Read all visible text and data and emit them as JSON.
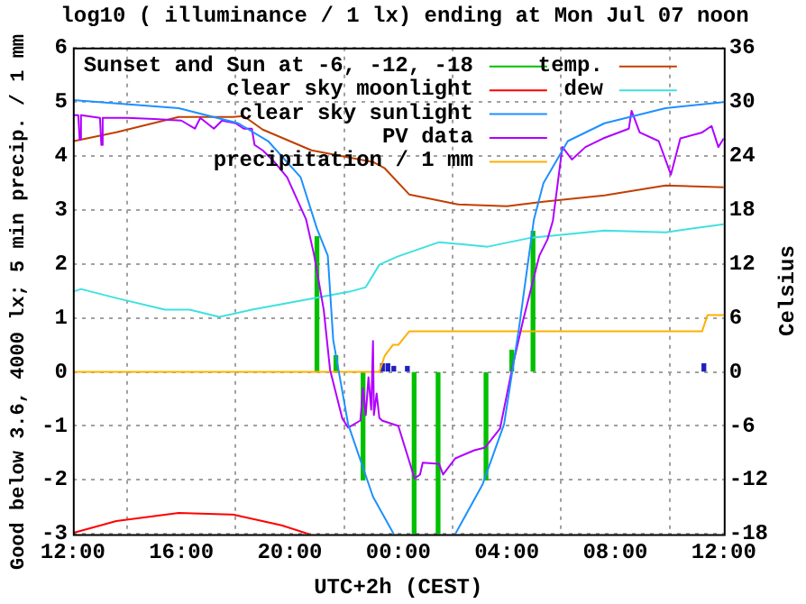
{
  "chart_data": {
    "type": "line",
    "title": "log10 ( illuminance / 1 lx) ending at Mon Jul 07 noon",
    "xlabel": "UTC+2h (CEST)",
    "ylabel": "Good below 3.6, 4000 lx; 5 min precip. / 1 mm",
    "y2label": "Celsius",
    "xlim": [
      "--07-06T12:00",
      "--07-07T12:00"
    ],
    "xticks": [
      {
        "value": "--07-06T12:00",
        "label": "12:00"
      },
      {
        "value": "--07-06T16:00",
        "label": "16:00"
      },
      {
        "value": "--07-06T20:00",
        "label": "20:00"
      },
      {
        "value": "--07-07T00:00",
        "label": "00:00"
      },
      {
        "value": "--07-07T04:00",
        "label": "04:00"
      },
      {
        "value": "--07-07T08:00",
        "label": "08:00"
      },
      {
        "value": "--07-07T12:00",
        "label": "12:00"
      }
    ],
    "ylim": [
      -3,
      6
    ],
    "yticks": [
      -3,
      -2,
      -1,
      0,
      1,
      2,
      3,
      4,
      5,
      6
    ],
    "y2lim": [
      -18,
      36
    ],
    "y2ticks": [
      -18,
      -12,
      -6,
      0,
      6,
      12,
      18,
      24,
      30,
      36
    ],
    "grid": true,
    "legend": "top",
    "series": [
      {
        "name": "Sunset and Sun at -6, -12, -18",
        "type": "bar",
        "color": "#00c000",
        "x": [
          "--07-06T21:00",
          "--07-06T21:42",
          "--07-06T22:42",
          "--07-07T00:35",
          "--07-07T01:28",
          "--07-07T03:14",
          "--07-07T04:11",
          "--07-07T04:58"
        ],
        "values": [
          2.5,
          0.3,
          -2,
          -3,
          -3,
          -2,
          0.4,
          2.6
        ]
      },
      {
        "name": "clear sky moonlight",
        "color": "#ff0000",
        "x": [
          "--07-06T12:00",
          "--07-06T13:36",
          "--07-06T15:54",
          "--07-06T17:54",
          "--07-06T19:42",
          "--07-06T20:42"
        ],
        "values": [
          -2.98,
          -2.76,
          -2.61,
          -2.64,
          -2.84,
          -3
        ]
      },
      {
        "name": "clear sky sunlight",
        "color": "#1e90ff",
        "x": [
          "--07-06T12:00",
          "--07-06T15:54",
          "--07-06T18:06",
          "--07-06T19:12",
          "--07-06T20:24",
          "--07-06T21:00",
          "--07-06T21:24",
          "--07-06T21:36",
          "--07-06T22:09",
          "--07-06T23:04",
          "--07-06T23:50",
          "--07-07T01:00",
          "--07-07T02:06",
          "--07-07T03:06",
          "--07-07T03:54",
          "--07-07T04:27",
          "--07-07T05:00",
          "--07-07T05:21",
          "--07-07T06:15",
          "--07-07T07:36",
          "--07-07T09:51",
          "--07-07T12:00"
        ],
        "values": [
          5.03,
          4.88,
          4.6,
          4.27,
          3.6,
          2.65,
          2.15,
          0.59,
          -0.97,
          -2.31,
          -3,
          null,
          -3,
          -2.09,
          -0.97,
          0.81,
          2.82,
          3.49,
          4.27,
          4.6,
          4.88,
          4.99
        ]
      },
      {
        "name": "PV data",
        "color": "#b000ff",
        "x": [
          "--07-06T12:00",
          "--07-06T12:12",
          "--07-06T12:15",
          "--07-06T12:18",
          "--07-06T13:00",
          "--07-06T13:03",
          "--07-06T13:06",
          "--07-06T14:00",
          "--07-06T15:00",
          "--07-06T16:00",
          "--07-06T16:30",
          "--07-06T16:42",
          "--07-06T17:12",
          "--07-06T17:30",
          "--07-06T18:00",
          "--07-06T18:18",
          "--07-06T18:36",
          "--07-06T18:42",
          "--07-06T19:00",
          "--07-06T19:24",
          "--07-06T19:54",
          "--07-06T20:36",
          "--07-06T20:54",
          "--07-06T21:15",
          "--07-06T21:29",
          "--07-06T21:56",
          "--07-06T22:09",
          "--07-06T22:36",
          "--07-06T22:42",
          "--07-06T22:48",
          "--07-06T22:54",
          "--07-06T23:00",
          "--07-06T23:04",
          "--07-06T23:06",
          "--07-06T23:12",
          "--07-06T23:18",
          "--07-06T23:24",
          "--07-07T00:00",
          "--07-07T00:36",
          "--07-07T00:48",
          "--07-07T00:54",
          "--07-07T01:30",
          "--07-07T01:39",
          "--07-07T02:06",
          "--07-07T02:48",
          "--07-07T03:12",
          "--07-07T03:45",
          "--07-07T04:12",
          "--07-07T04:36",
          "--07-07T05:12",
          "--07-07T05:30",
          "--07-07T05:42",
          "--07-07T06:03",
          "--07-07T06:24",
          "--07-07T06:54",
          "--07-07T07:33",
          "--07-07T08:30",
          "--07-07T08:36",
          "--07-07T08:54",
          "--07-07T09:36",
          "--07-07T10:03",
          "--07-07T10:24",
          "--07-07T11:12",
          "--07-07T11:33",
          "--07-07T11:48",
          "--07-07T12:00"
        ],
        "values": [
          4.75,
          4.75,
          4.3,
          4.75,
          4.7,
          4.2,
          4.7,
          4.7,
          4.68,
          4.65,
          4.5,
          4.7,
          4.5,
          4.65,
          4.6,
          4.5,
          4.5,
          4.2,
          4.1,
          3.9,
          3.6,
          2.82,
          2.15,
          1.15,
          0.04,
          -0.86,
          -1.03,
          -0.9,
          -0.3,
          -0.8,
          -0.1,
          -0.7,
          0.57,
          -0.8,
          -0.4,
          -0.85,
          -0.9,
          -1.0,
          -1.97,
          -1.9,
          -1.68,
          -1.7,
          -1.9,
          -1.6,
          -1.45,
          -1.4,
          -1.05,
          0.07,
          0.95,
          2.15,
          2.45,
          2.8,
          4.16,
          3.93,
          4.16,
          4.32,
          4.5,
          4.83,
          4.43,
          4.27,
          3.65,
          4.32,
          4.43,
          4.55,
          4.16,
          4.32
        ]
      },
      {
        "name": "precipitation / 1 mm",
        "color": "#ffb000",
        "x": [
          "--07-06T12:00",
          "--07-06T23:18",
          "--07-06T23:30",
          "--07-06T23:48",
          "--07-07T00:00",
          "--07-07T00:24",
          "--07-07T11:12",
          "--07-07T11:24",
          "--07-07T12:00"
        ],
        "values": [
          0,
          0,
          0.3,
          0.5,
          0.5,
          0.75,
          0.75,
          1.05,
          1.05
        ]
      },
      {
        "name": "temp.",
        "axis": "y2",
        "color": "#c04000",
        "x": [
          "--07-06T12:00",
          "--07-06T13:36",
          "--07-06T15:54",
          "--07-06T17:54",
          "--07-06T18:18",
          "--07-06T19:00",
          "--07-06T20:48",
          "--07-06T23:04",
          "--07-06T23:30",
          "--07-07T00:24",
          "--07-07T02:12",
          "--07-07T04:00",
          "--07-07T05:21",
          "--07-07T07:36",
          "--07-07T09:51",
          "--07-07T12:00"
        ],
        "values": [
          25.6,
          26.6,
          28.3,
          28.3,
          28.4,
          26.9,
          24.6,
          23.3,
          22.6,
          19.7,
          18.6,
          18.4,
          18.9,
          19.6,
          20.7,
          20.5
        ]
      },
      {
        "name": "dew",
        "axis": "y2",
        "color": "#40e0e0",
        "x": [
          "--07-06T12:00",
          "--07-06T12:18",
          "--07-06T13:36",
          "--07-06T15:24",
          "--07-06T16:18",
          "--07-06T17:24",
          "--07-06T18:36",
          "--07-06T20:24",
          "--07-06T22:12",
          "--07-06T22:48",
          "--07-06T23:18",
          "--07-06T23:58",
          "--07-07T01:30",
          "--07-07T03:18",
          "--07-07T04:54",
          "--07-07T07:36",
          "--07-07T09:51",
          "--07-07T12:00"
        ],
        "values": [
          8.9,
          9.2,
          8.2,
          6.9,
          6.9,
          6.1,
          6.9,
          7.9,
          8.9,
          9.4,
          11.9,
          12.8,
          14.4,
          13.9,
          14.9,
          15.7,
          15.5,
          16.4
        ]
      },
      {
        "type": "bar",
        "color": "#2020c0",
        "x": [
          "--07-06T23:25",
          "--07-06T23:37",
          "--07-06T23:50",
          "--07-07T00:20",
          "--07-07T11:16"
        ],
        "values": [
          0.15,
          0.15,
          0.1,
          0.1,
          0.15
        ]
      }
    ]
  }
}
